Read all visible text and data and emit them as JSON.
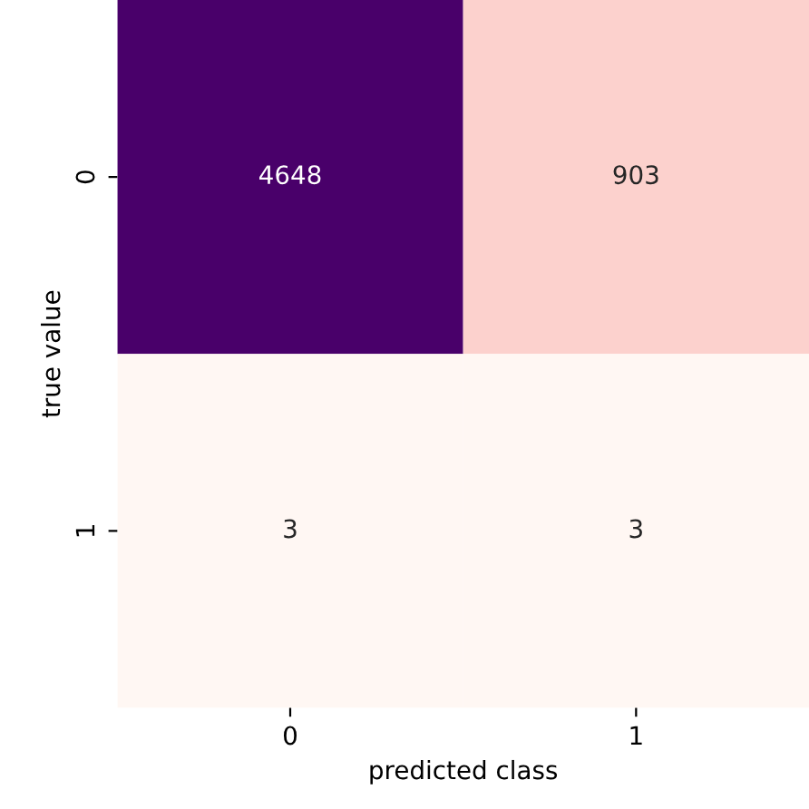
{
  "chart_data": {
    "type": "heatmap",
    "xlabel": "predicted class",
    "ylabel": "true value",
    "categories": [
      "0",
      "1"
    ],
    "y_categories": [
      "0",
      "1"
    ],
    "cells": [
      [
        4648,
        903
      ],
      [
        3,
        3
      ]
    ],
    "data_labels": true
  }
}
